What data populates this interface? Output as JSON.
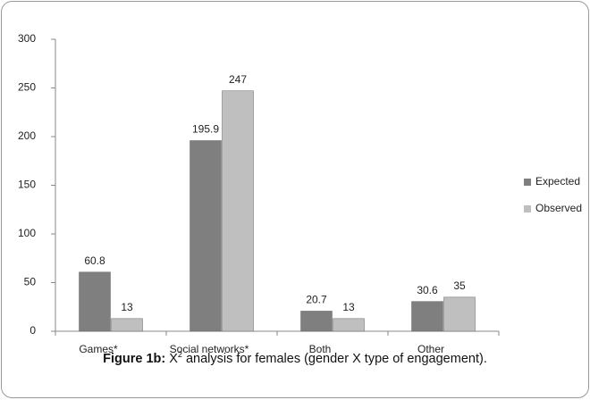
{
  "chart_data": {
    "type": "bar",
    "categories": [
      "Games*",
      "Social networks*",
      "Both",
      "Other"
    ],
    "series": [
      {
        "name": "Expected",
        "color": "#7f7f7f",
        "values": [
          60.8,
          195.9,
          20.7,
          30.6
        ]
      },
      {
        "name": "Observed",
        "color": "#bfbfbf",
        "values": [
          13,
          247,
          13,
          35
        ]
      }
    ],
    "ylim": [
      0,
      300
    ],
    "yticks": [
      0,
      50,
      100,
      150,
      200,
      250,
      300
    ],
    "grid": false,
    "legend": "right",
    "caption": {
      "label": "Figure 1b:",
      "symbol": "X",
      "superscript": "2",
      "text": "analysis for females (gender X type of engagement)."
    }
  }
}
